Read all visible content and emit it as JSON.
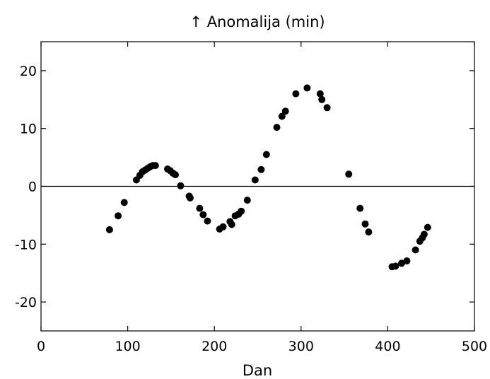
{
  "chart_data": {
    "type": "scatter",
    "title": "↑ Anomalija (min)",
    "xlabel": "Dan",
    "ylabel": "",
    "xlim": [
      0,
      500
    ],
    "ylim": [
      -25,
      25
    ],
    "x_ticks": [
      0,
      100,
      200,
      300,
      400,
      500
    ],
    "y_ticks": [
      -20,
      -10,
      0,
      10,
      20
    ],
    "x_tick_labels": [
      "0",
      "100",
      "200",
      "300",
      "400",
      "500"
    ],
    "y_tick_labels": [
      "-20",
      "-10",
      "0",
      "10",
      "20"
    ],
    "grid": false,
    "reference_line": {
      "y": 0,
      "color": "#000000"
    },
    "marker_color": "#000000",
    "series": [
      {
        "points": [
          [
            79,
            -7.5
          ],
          [
            89,
            -5.1
          ],
          [
            96,
            -2.8
          ],
          [
            110,
            1.1
          ],
          [
            114,
            1.9
          ],
          [
            117,
            2.5
          ],
          [
            120,
            2.8
          ],
          [
            123,
            3.1
          ],
          [
            126,
            3.4
          ],
          [
            129,
            3.6
          ],
          [
            132,
            3.6
          ],
          [
            146,
            3.0
          ],
          [
            149,
            2.7
          ],
          [
            152,
            2.3
          ],
          [
            155,
            2.0
          ],
          [
            161,
            0.1
          ],
          [
            171,
            -1.7
          ],
          [
            172,
            -2.0
          ],
          [
            183,
            -3.8
          ],
          [
            187,
            -4.9
          ],
          [
            192,
            -6.0
          ],
          [
            206,
            -7.4
          ],
          [
            210,
            -7.0
          ],
          [
            218,
            -6.1
          ],
          [
            220,
            -6.6
          ],
          [
            224,
            -5.1
          ],
          [
            228,
            -4.8
          ],
          [
            231,
            -4.3
          ],
          [
            238,
            -2.4
          ],
          [
            247,
            1.1
          ],
          [
            254,
            2.9
          ],
          [
            260,
            5.5
          ],
          [
            272,
            10.2
          ],
          [
            278,
            12.1
          ],
          [
            282,
            13.0
          ],
          [
            294,
            16.0
          ],
          [
            307,
            17.0
          ],
          [
            322,
            16.0
          ],
          [
            324,
            15.0
          ],
          [
            330,
            13.6
          ],
          [
            355,
            2.1
          ],
          [
            368,
            -3.8
          ],
          [
            374,
            -6.5
          ],
          [
            378,
            -7.9
          ],
          [
            405,
            -13.9
          ],
          [
            409,
            -13.8
          ],
          [
            416,
            -13.3
          ],
          [
            422,
            -12.9
          ],
          [
            432,
            -11.0
          ],
          [
            437,
            -9.5
          ],
          [
            440,
            -8.9
          ],
          [
            442,
            -8.3
          ],
          [
            446,
            -7.1
          ]
        ]
      }
    ]
  }
}
